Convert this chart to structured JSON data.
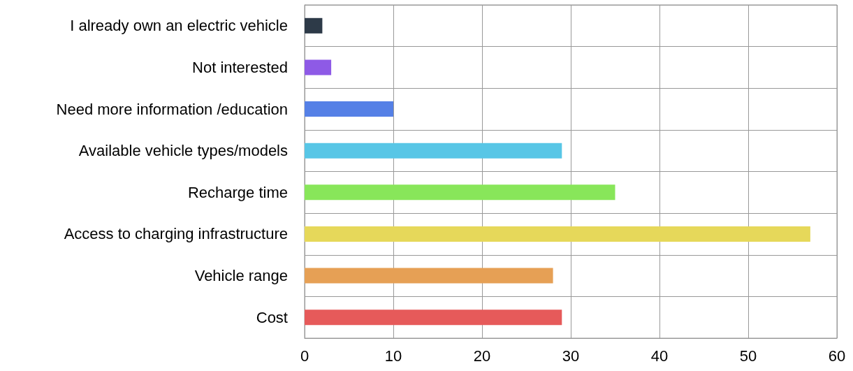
{
  "chart_data": {
    "type": "bar",
    "orientation": "horizontal",
    "categories": [
      "I already own an electric vehicle",
      "Not interested",
      "Need more information /education",
      "Available vehicle types/models",
      "Recharge time",
      "Access to charging infrastructure",
      "Vehicle range",
      "Cost"
    ],
    "values": [
      2,
      3,
      10,
      29,
      35,
      57,
      28,
      29
    ],
    "colors": [
      "#2d3a48",
      "#8e5ae6",
      "#5580e6",
      "#58c6e6",
      "#88e65a",
      "#e6d85a",
      "#e6a055",
      "#e65a5a"
    ],
    "xlim": [
      0,
      60
    ],
    "xticks": [
      0,
      10,
      20,
      30,
      40,
      50,
      60
    ],
    "grid": true
  }
}
